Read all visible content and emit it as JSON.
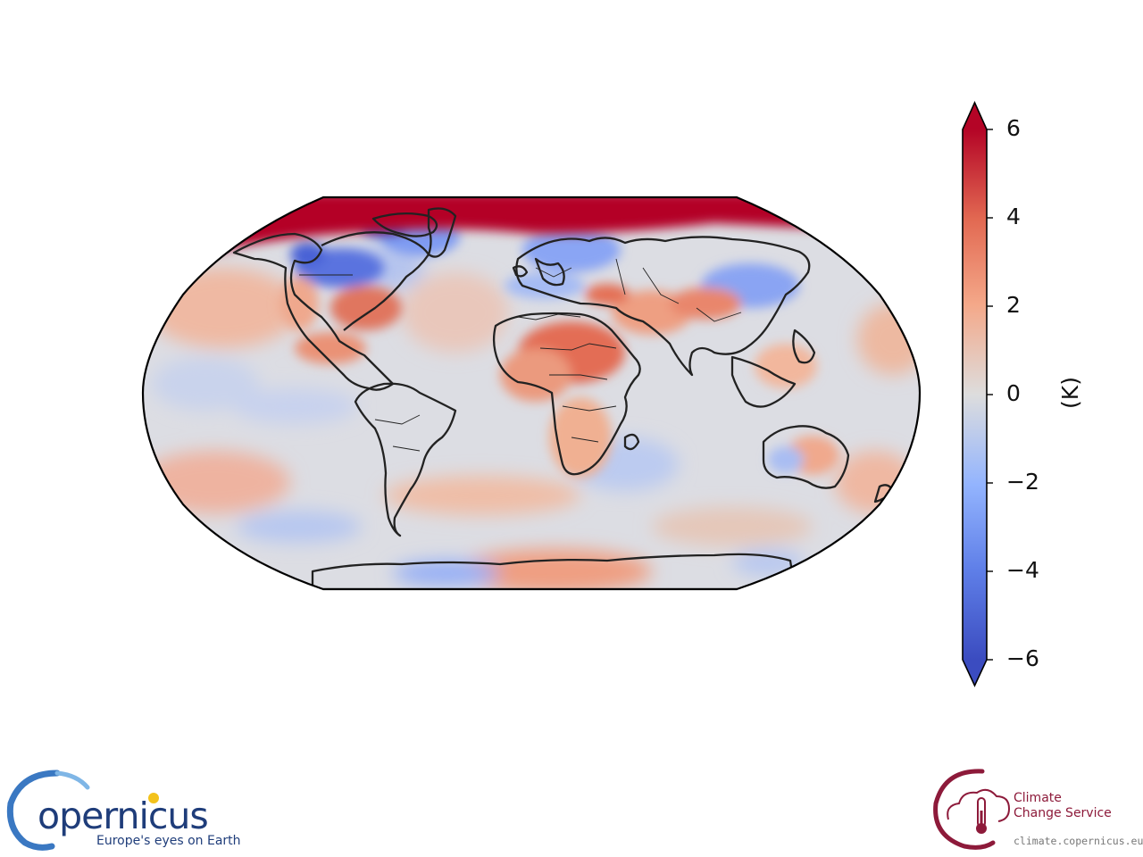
{
  "map": {
    "projection": "robinson",
    "colormap": "coolwarm",
    "field": "temperature anomaly",
    "coastlines": true,
    "borders": true
  },
  "colorbar": {
    "unit_label": "(K)",
    "min": -6,
    "max": 6,
    "extend": "both",
    "ticks": [
      {
        "value": 6,
        "label": "6"
      },
      {
        "value": 4,
        "label": "4"
      },
      {
        "value": 2,
        "label": "2"
      },
      {
        "value": 0,
        "label": "0"
      },
      {
        "value": -2,
        "label": "−2"
      },
      {
        "value": -4,
        "label": "−4"
      },
      {
        "value": -6,
        "label": "−6"
      }
    ],
    "colors": {
      "min": "#3b4cc0",
      "mid": "#dddddd",
      "max": "#b40426"
    }
  },
  "logos": {
    "copernicus": {
      "name": "opernicus",
      "tagline": "Europe's eyes on Earth"
    },
    "c3s": {
      "line1": "Climate",
      "line2": "Change Service",
      "url": "climate.copernicus.eu"
    }
  }
}
